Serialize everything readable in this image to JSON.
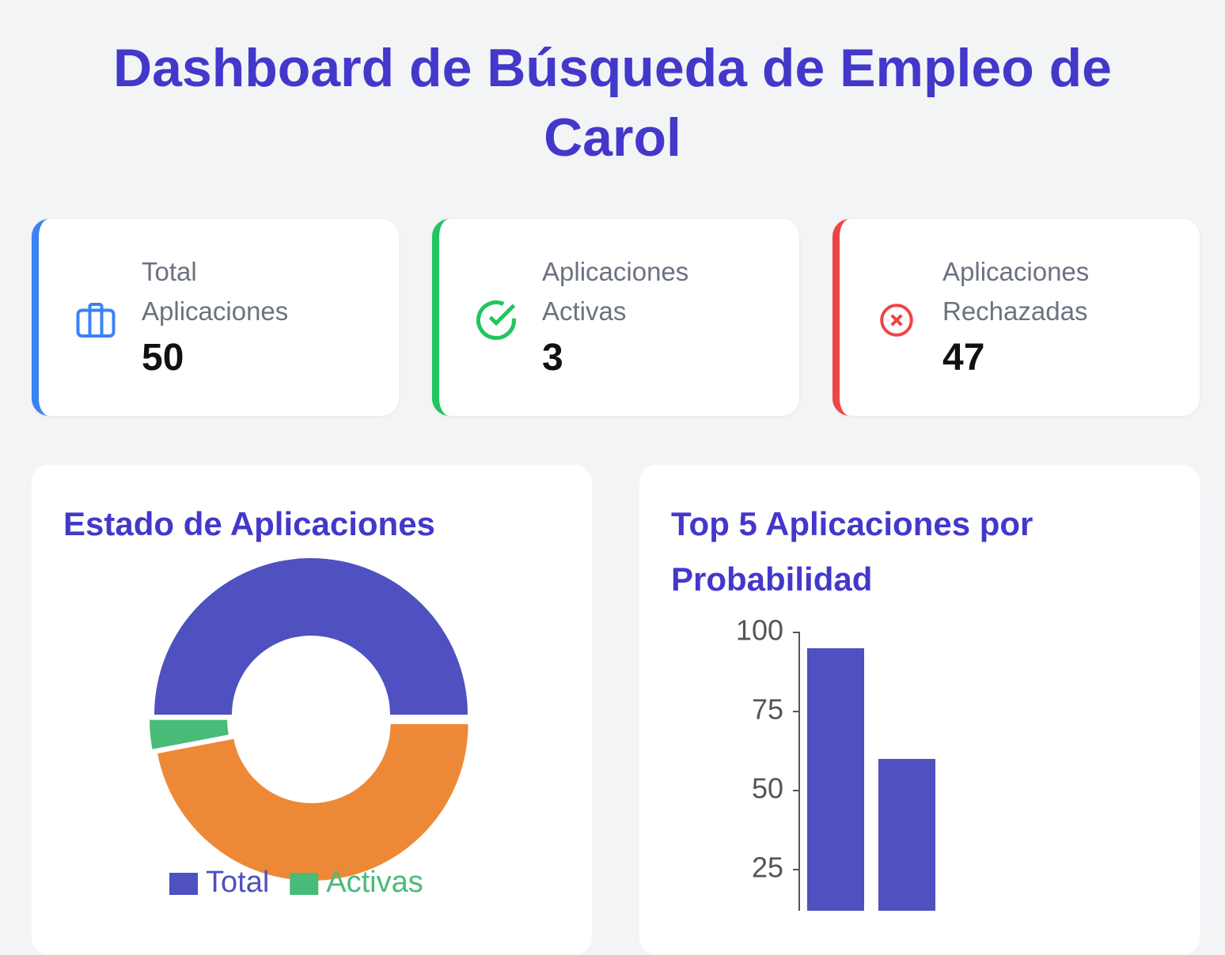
{
  "header": {
    "title": "Dashboard de Búsqueda de Empleo de Carol"
  },
  "stats": [
    {
      "label": "Total Aplicaciones",
      "value": 50,
      "color": "#3b82f6"
    },
    {
      "label": "Aplicaciones Activas",
      "value": 3,
      "color": "#22c55e"
    },
    {
      "label": "Aplicaciones Rechazadas",
      "value": 47,
      "color": "#ef4444"
    }
  ],
  "chart_data": [
    {
      "type": "doughnut",
      "title": "Estado de Aplicaciones",
      "categories": [
        "Total",
        "Activas",
        null
      ],
      "values": [
        50,
        3,
        47
      ],
      "colors": [
        "#4e51bf",
        "#48bb78",
        "#ed8936"
      ],
      "legend": "bottom"
    },
    {
      "type": "bar",
      "title": "Top 5 Aplicaciones por Probabilidad",
      "categories": [
        null,
        null
      ],
      "values": [
        95,
        60
      ],
      "color": "#4e51bf",
      "ylim": [
        0,
        100
      ],
      "yticks": [
        25,
        50,
        75,
        100
      ]
    }
  ]
}
